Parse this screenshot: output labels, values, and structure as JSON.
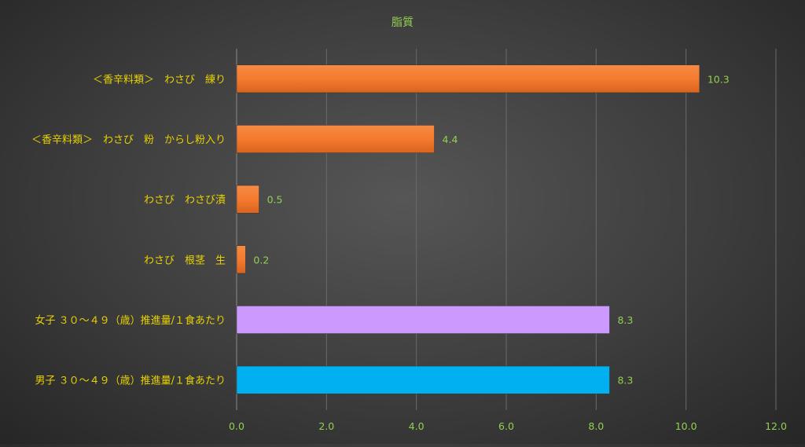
{
  "chart_data": {
    "type": "bar",
    "orientation": "horizontal",
    "title": "脂質",
    "categories": [
      "＜香辛料類＞　わさび　練り",
      "＜香辛料類＞　わさび　粉　からし粉入り",
      "わさび　わさび漬",
      "わさび　根茎　生",
      "女子 ３０～４９（歳）推進量/１食あたり",
      "男子 ３０～４９（歳）推進量/１食あたり"
    ],
    "values": [
      10.3,
      4.4,
      0.5,
      0.2,
      8.3,
      8.3
    ],
    "value_labels": [
      "10.3",
      "4.4",
      "0.5",
      "0.2",
      "8.3",
      "8.3"
    ],
    "bar_colors": [
      "#f47a2e",
      "#f47a2e",
      "#f47a2e",
      "#f47a2e",
      "#cc99ff",
      "#00b0f0"
    ],
    "xlim": [
      0,
      12
    ],
    "x_ticks": [
      "0.0",
      "2.0",
      "4.0",
      "6.0",
      "8.0",
      "10.0",
      "12.0"
    ],
    "grid": true,
    "colors": {
      "title": "#92d050",
      "category_labels": "#e8d100",
      "tick_labels": "#92d050",
      "value_labels": "#92d050",
      "gridlines": "#6a6a6a"
    }
  }
}
